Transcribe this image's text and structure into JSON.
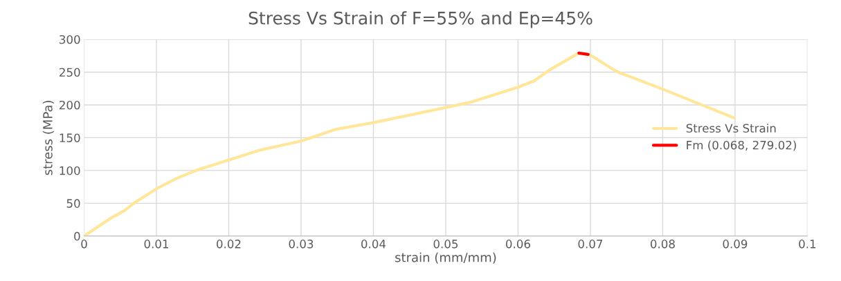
{
  "chart_data": {
    "type": "line",
    "title": "Stress Vs Strain of F=55% and Ep=45%",
    "xlabel": "strain (mm/mm)",
    "ylabel": "stress (MPa)",
    "series": [
      {
        "name": "Stress Vs Strain",
        "color": "#ffe699",
        "x": [
          0,
          0.0035,
          0.0056,
          0.007,
          0.01,
          0.0128,
          0.0157,
          0.02,
          0.0243,
          0.03,
          0.0349,
          0.039,
          0.04,
          0.05,
          0.0534,
          0.06,
          0.0623,
          0.0643,
          0.0684,
          0.07,
          0.0736,
          0.08,
          0.0899
        ],
        "values": [
          0,
          26,
          39,
          51,
          72,
          88,
          101,
          116,
          131,
          145,
          163,
          171,
          173,
          196,
          204,
          227,
          237,
          253,
          279,
          276,
          251,
          224,
          180
        ]
      },
      {
        "name": "Fm (0.068, 279.02)",
        "color": "#ff0000",
        "x": [
          0.0684,
          0.0697
        ],
        "values": [
          279,
          277
        ]
      }
    ],
    "xlim": [
      0,
      0.1
    ],
    "xticks": [
      0,
      0.01,
      0.02,
      0.03,
      0.04,
      0.05,
      0.06,
      0.07,
      0.08,
      0.09,
      0.1
    ],
    "ylim": [
      0,
      300
    ],
    "yticks": [
      0,
      50,
      100,
      150,
      200,
      250,
      300
    ],
    "grid": true,
    "legend": "right",
    "marker": "none",
    "line_style": "solid"
  }
}
